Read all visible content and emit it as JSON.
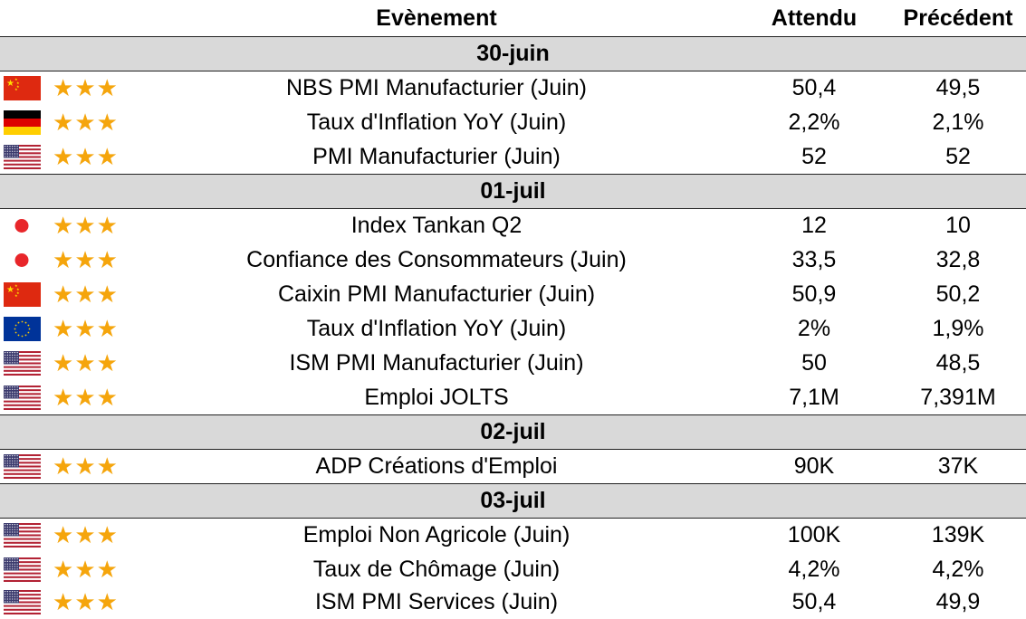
{
  "header": {
    "event": "Evènement",
    "expected": "Attendu",
    "previous": "Précédent"
  },
  "star_glyph": "★",
  "star_color": "#f5a50c",
  "date_band_color": "#d9d9d9",
  "dates": [
    "30-juin",
    "01-juil",
    "02-juil",
    "03-juil"
  ],
  "rows": [
    {
      "country_flag": "china-flag-icon",
      "importance_stars": 3,
      "event": "NBS PMI Manufacturier (Juin)",
      "expected": "50,4",
      "previous": "49,5"
    },
    {
      "country_flag": "germany-flag-icon",
      "importance_stars": 3,
      "event": "Taux d'Inflation YoY (Juin)",
      "expected": "2,2%",
      "previous": "2,1%"
    },
    {
      "country_flag": "usa-flag-icon",
      "importance_stars": 3,
      "event": "PMI Manufacturier (Juin)",
      "expected": "52",
      "previous": "52"
    },
    {
      "country_flag": "japan-flag-icon",
      "importance_stars": 3,
      "event": "Index Tankan Q2",
      "expected": "12",
      "previous": "10"
    },
    {
      "country_flag": "japan-flag-icon",
      "importance_stars": 3,
      "event": "Confiance des Consommateurs (Juin)",
      "expected": "33,5",
      "previous": "32,8"
    },
    {
      "country_flag": "china-flag-icon",
      "importance_stars": 3,
      "event": "Caixin PMI Manufacturier (Juin)",
      "expected": "50,9",
      "previous": "50,2"
    },
    {
      "country_flag": "eu-flag-icon",
      "importance_stars": 3,
      "event": "Taux d'Inflation YoY (Juin)",
      "expected": "2%",
      "previous": "1,9%"
    },
    {
      "country_flag": "usa-flag-icon",
      "importance_stars": 3,
      "event": "ISM PMI Manufacturier (Juin)",
      "expected": "50",
      "previous": "48,5"
    },
    {
      "country_flag": "usa-flag-icon",
      "importance_stars": 3,
      "event": "Emploi JOLTS",
      "expected": "7,1M",
      "previous": "7,391M"
    },
    {
      "country_flag": "usa-flag-icon",
      "importance_stars": 3,
      "event": "ADP Créations d'Emploi",
      "expected": "90K",
      "previous": "37K"
    },
    {
      "country_flag": "usa-flag-icon",
      "importance_stars": 3,
      "event": "Emploi Non Agricole (Juin)",
      "expected": "100K",
      "previous": "139K"
    },
    {
      "country_flag": "usa-flag-icon",
      "importance_stars": 3,
      "event": "Taux de Chômage (Juin)",
      "expected": "4,2%",
      "previous": "4,2%"
    },
    {
      "country_flag": "usa-flag-icon",
      "importance_stars": 3,
      "event": "ISM PMI Services (Juin)",
      "expected": "50,4",
      "previous": "49,9"
    }
  ]
}
